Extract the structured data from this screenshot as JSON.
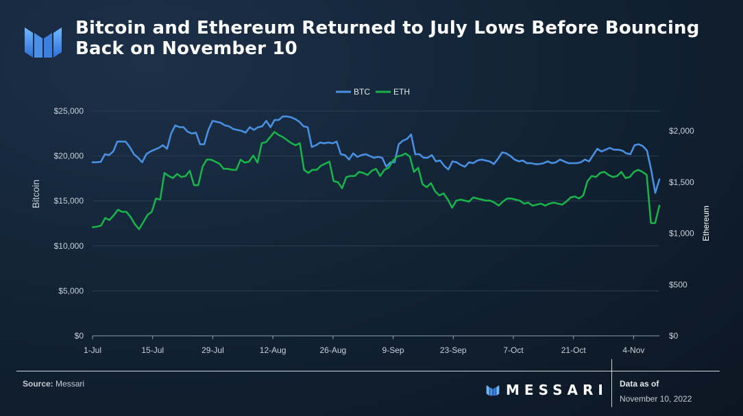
{
  "title": "Bitcoin and Ethereum Returned to July Lows Before Bouncing Back on November 10",
  "footer": {
    "source_label": "Source:",
    "source_value": "Messari",
    "brand": "MESSARI",
    "data_as_of_label": "Data as of",
    "data_as_of_date": "November 10, 2022"
  },
  "colors": {
    "btc": "#4a90e2",
    "eth": "#19b34a",
    "text": "#c9d1da",
    "grid": "#2c3e52"
  },
  "chart_data": {
    "type": "line",
    "title": "Bitcoin and Ethereum Returned to July Lows Before Bouncing Back on November 10",
    "legend": [
      "BTC",
      "ETH"
    ],
    "legend_position": "top-center",
    "x_tick_labels": [
      "1-Jul",
      "15-Jul",
      "29-Jul",
      "12-Aug",
      "26-Aug",
      "9-Sep",
      "23-Sep",
      "7-Oct",
      "21-Oct",
      "4-Nov"
    ],
    "y_left": {
      "label": "Bitcoin",
      "min": 0,
      "max": 25000,
      "ticks": [
        "$0",
        "$5,000",
        "$10,000",
        "$15,000",
        "$20,000",
        "$25,000"
      ]
    },
    "y_right": {
      "label": "Ethereum",
      "min": 0,
      "max": 2000,
      "ticks": [
        "$0",
        "$500",
        "$1,000",
        "$1,500",
        "$2,000"
      ]
    },
    "x_range": [
      "2022-07-01",
      "2022-11-10"
    ],
    "series": [
      {
        "name": "BTC",
        "axis": "left",
        "values": [
          19300,
          19300,
          19350,
          20200,
          20100,
          20500,
          21600,
          21600,
          21600,
          21000,
          20200,
          19800,
          19300,
          20200,
          20500,
          20700,
          20900,
          21200,
          20800,
          22500,
          23400,
          23200,
          23200,
          22700,
          22500,
          22600,
          21300,
          21300,
          22900,
          23900,
          23800,
          23700,
          23400,
          23300,
          23000,
          22900,
          22800,
          22600,
          23200,
          22900,
          23200,
          23300,
          23900,
          23200,
          24000,
          24000,
          24400,
          24400,
          24300,
          24100,
          23800,
          23300,
          23200,
          21000,
          21200,
          21500,
          21400,
          21500,
          21400,
          21600,
          20200,
          20100,
          19600,
          20300,
          19900,
          20100,
          20200,
          20000,
          19800,
          19900,
          19800,
          18800,
          19300,
          19300,
          21300,
          21700,
          21900,
          22400,
          20200,
          20200,
          19800,
          19800,
          20100,
          19400,
          19500,
          18900,
          18500,
          19400,
          19300,
          19000,
          18800,
          19300,
          19200,
          19500,
          19600,
          19500,
          19400,
          19100,
          19700,
          20400,
          20300,
          20000,
          19600,
          19400,
          19500,
          19200,
          19200,
          19100,
          19100,
          19200,
          19400,
          19200,
          19300,
          19600,
          19400,
          19200,
          19200,
          19200,
          19300,
          19600,
          19400,
          20100,
          20800,
          20500,
          20700,
          20900,
          20700,
          20700,
          20600,
          20300,
          20200,
          21200,
          21300,
          21100,
          20600,
          18500,
          15900,
          17400
        ]
      },
      {
        "name": "ETH",
        "axis": "right",
        "values": [
          1060,
          1065,
          1075,
          1150,
          1130,
          1175,
          1230,
          1210,
          1210,
          1160,
          1090,
          1040,
          1110,
          1180,
          1210,
          1340,
          1330,
          1590,
          1560,
          1540,
          1580,
          1550,
          1560,
          1610,
          1470,
          1470,
          1650,
          1720,
          1720,
          1700,
          1680,
          1630,
          1630,
          1620,
          1620,
          1720,
          1690,
          1700,
          1760,
          1690,
          1880,
          1890,
          1940,
          1990,
          1960,
          1940,
          1910,
          1880,
          1860,
          1880,
          1620,
          1590,
          1620,
          1620,
          1660,
          1680,
          1700,
          1510,
          1500,
          1440,
          1550,
          1560,
          1560,
          1600,
          1590,
          1570,
          1610,
          1630,
          1560,
          1620,
          1640,
          1710,
          1750,
          1760,
          1780,
          1750,
          1600,
          1640,
          1480,
          1450,
          1490,
          1410,
          1370,
          1390,
          1330,
          1250,
          1320,
          1330,
          1320,
          1310,
          1350,
          1340,
          1330,
          1320,
          1320,
          1300,
          1270,
          1310,
          1340,
          1340,
          1330,
          1320,
          1290,
          1300,
          1270,
          1280,
          1290,
          1270,
          1290,
          1300,
          1290,
          1280,
          1310,
          1350,
          1360,
          1340,
          1370,
          1510,
          1560,
          1550,
          1590,
          1600,
          1570,
          1550,
          1560,
          1600,
          1540,
          1550,
          1600,
          1620,
          1600,
          1570,
          1100,
          1100,
          1270
        ]
      }
    ]
  }
}
